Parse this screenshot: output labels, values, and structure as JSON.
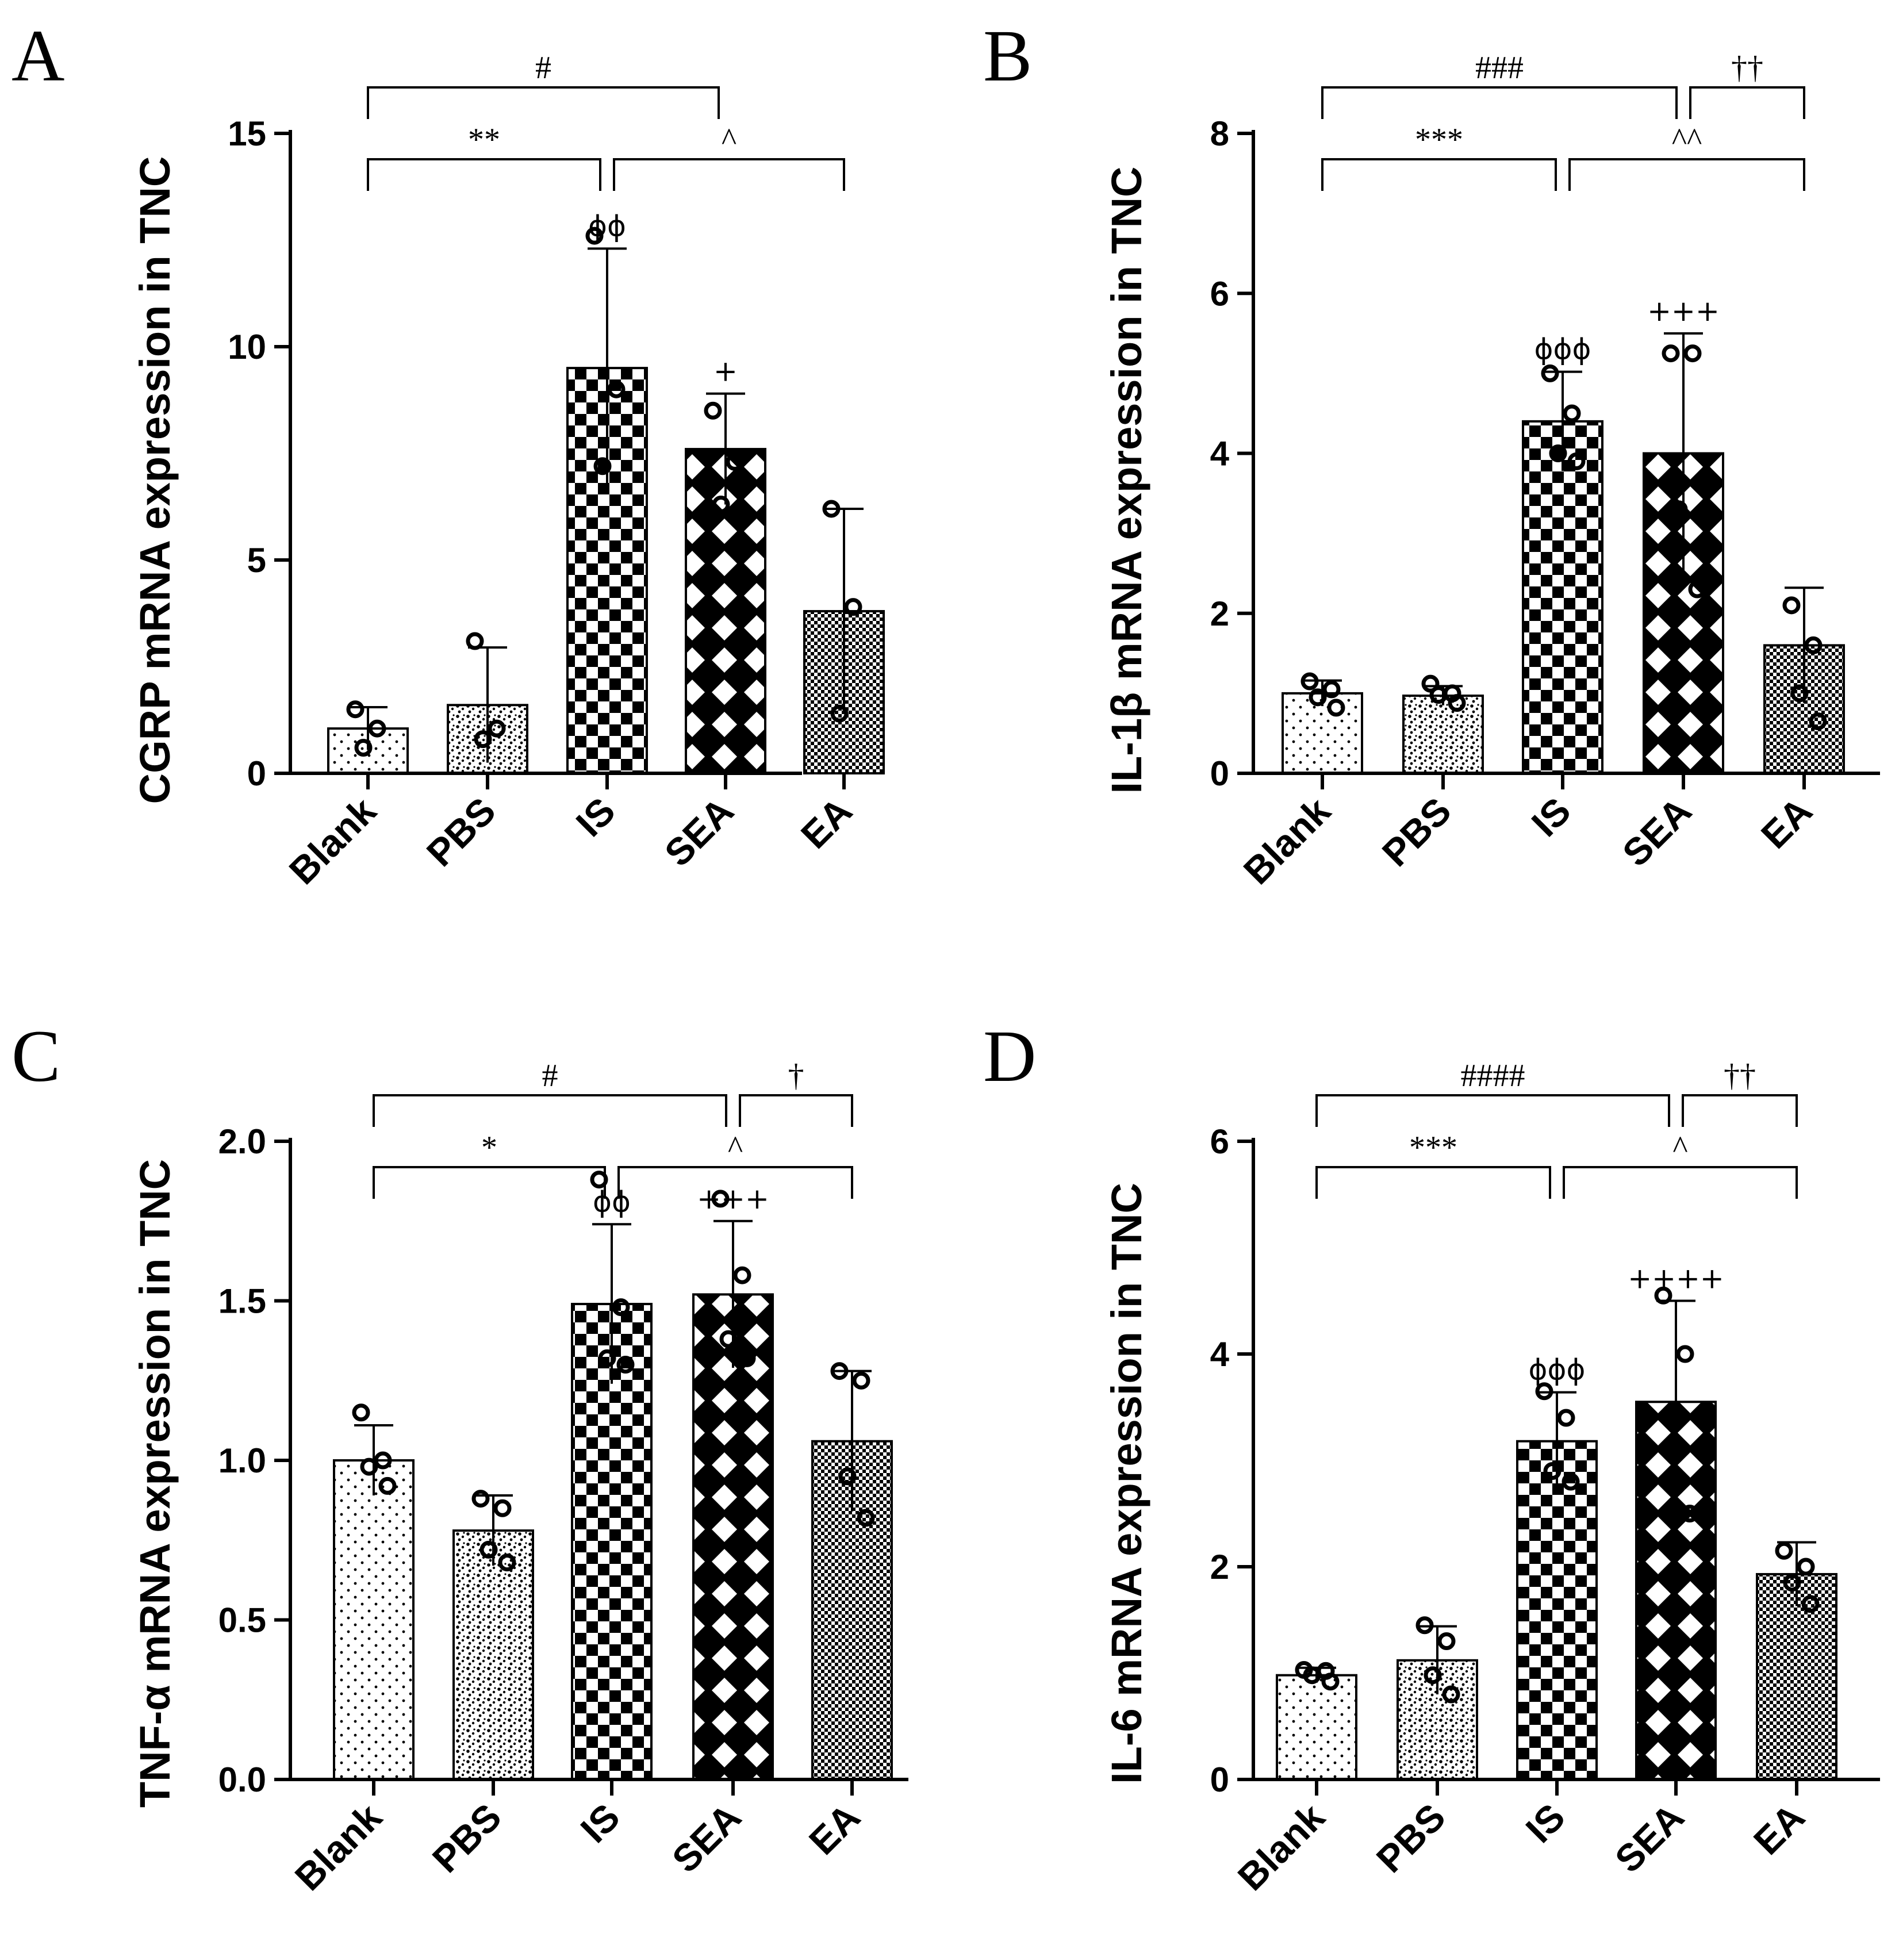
{
  "chart_data": [
    {
      "panel": "A",
      "type": "bar",
      "ylabel": "CGRP mRNA expression in TNC",
      "ylim": [
        0,
        15
      ],
      "yticks": [
        "0",
        "5",
        "10",
        "15"
      ],
      "ytick_values": [
        0,
        5,
        10,
        15
      ],
      "categories": [
        "Blank",
        "PBS",
        "IS",
        "SEA",
        "EA"
      ],
      "values": [
        1.05,
        1.6,
        9.5,
        7.6,
        3.8
      ],
      "errors": [
        0.5,
        1.35,
        2.8,
        1.3,
        2.4
      ],
      "points": [
        [
          1.5,
          1.05,
          0.6
        ],
        [
          3.1,
          1.05,
          0.8
        ],
        [
          12.6,
          9.0,
          7.2
        ],
        [
          8.5,
          7.3,
          6.3
        ],
        [
          6.2,
          3.9,
          1.4
        ]
      ],
      "patterns": [
        "dots",
        "speckle",
        "checker",
        "diamond",
        "fine"
      ],
      "group_symbols": [
        "",
        "",
        "ϕϕ",
        "+",
        ""
      ],
      "comparisons": [
        {
          "from": 0,
          "to": 2,
          "label": "**",
          "level": 0
        },
        {
          "from": 2,
          "to": 4,
          "label": "^",
          "level": 0
        },
        {
          "from": 0,
          "to": 3,
          "label": "#",
          "level": 1
        }
      ]
    },
    {
      "panel": "B",
      "type": "bar",
      "ylabel": "IL-1β mRNA expression in TNC",
      "ylim": [
        0,
        8
      ],
      "yticks": [
        "0",
        "2",
        "4",
        "6",
        "8"
      ],
      "ytick_values": [
        0,
        2,
        4,
        6,
        8
      ],
      "categories": [
        "Blank",
        "PBS",
        "IS",
        "SEA",
        "EA"
      ],
      "values": [
        1.0,
        0.97,
        4.4,
        4.0,
        1.6
      ],
      "errors": [
        0.16,
        0.12,
        0.62,
        1.5,
        0.72
      ],
      "points": [
        [
          1.15,
          1.05,
          0.95,
          0.82
        ],
        [
          1.12,
          1.0,
          0.98,
          0.88
        ],
        [
          5.0,
          4.5,
          4.0,
          3.9
        ],
        [
          5.25,
          5.25,
          3.3,
          2.3
        ],
        [
          2.1,
          1.6,
          1.0,
          0.65
        ]
      ],
      "patterns": [
        "dots",
        "speckle",
        "checker",
        "diamond",
        "fine"
      ],
      "group_symbols": [
        "",
        "",
        "ϕϕϕ",
        "+++",
        ""
      ],
      "comparisons": [
        {
          "from": 0,
          "to": 2,
          "label": "***",
          "level": 0
        },
        {
          "from": 2,
          "to": 4,
          "label": "^^",
          "level": 0
        },
        {
          "from": 0,
          "to": 3,
          "label": "###",
          "level": 1
        },
        {
          "from": 3,
          "to": 4,
          "label": "††",
          "level": 1
        }
      ]
    },
    {
      "panel": "C",
      "type": "bar",
      "ylabel": "TNF-α mRNA expression in TNC",
      "ylim": [
        0,
        2.0
      ],
      "yticks": [
        "0.0",
        "0.5",
        "1.0",
        "1.5",
        "2.0"
      ],
      "ytick_values": [
        0,
        0.5,
        1.0,
        1.5,
        2.0
      ],
      "categories": [
        "Blank",
        "PBS",
        "IS",
        "SEA",
        "EA"
      ],
      "values": [
        1.0,
        0.78,
        1.49,
        1.52,
        1.06
      ],
      "errors": [
        0.11,
        0.11,
        0.25,
        0.23,
        0.22
      ],
      "points": [
        [
          1.15,
          1.0,
          0.98,
          0.92
        ],
        [
          0.88,
          0.85,
          0.72,
          0.68
        ],
        [
          1.88,
          1.48,
          1.32,
          1.3
        ],
        [
          1.82,
          1.58,
          1.38,
          1.32
        ],
        [
          1.28,
          1.25,
          0.95,
          0.82
        ]
      ],
      "patterns": [
        "dots",
        "speckle",
        "checker",
        "diamond",
        "fine"
      ],
      "group_symbols": [
        "",
        "",
        "ϕϕ",
        "+++",
        ""
      ],
      "comparisons": [
        {
          "from": 0,
          "to": 2,
          "label": "*",
          "level": 0
        },
        {
          "from": 2,
          "to": 4,
          "label": "^",
          "level": 0
        },
        {
          "from": 0,
          "to": 3,
          "label": "#",
          "level": 1
        },
        {
          "from": 3,
          "to": 4,
          "label": "†",
          "level": 1
        }
      ]
    },
    {
      "panel": "D",
      "type": "bar",
      "ylabel": "IL-6 mRNA expression in TNC",
      "ylim": [
        0,
        6
      ],
      "yticks": [
        "0",
        "2",
        "4",
        "6"
      ],
      "ytick_values": [
        0,
        2,
        4,
        6
      ],
      "categories": [
        "Blank",
        "PBS",
        "IS",
        "SEA",
        "EA"
      ],
      "values": [
        0.98,
        1.12,
        3.18,
        3.55,
        1.93
      ],
      "errors": [
        0.07,
        0.32,
        0.46,
        0.95,
        0.3
      ],
      "points": [
        [
          1.03,
          1.02,
          0.98,
          0.92
        ],
        [
          1.45,
          1.3,
          0.98,
          0.8
        ],
        [
          3.65,
          3.4,
          2.9,
          2.8
        ],
        [
          4.55,
          4.0,
          3.1,
          2.5
        ],
        [
          2.15,
          2.0,
          1.85,
          1.65
        ]
      ],
      "patterns": [
        "dots",
        "speckle",
        "checker",
        "diamond",
        "fine"
      ],
      "group_symbols": [
        "",
        "",
        "ϕϕϕ",
        "++++",
        ""
      ],
      "comparisons": [
        {
          "from": 0,
          "to": 2,
          "label": "***",
          "level": 0
        },
        {
          "from": 2,
          "to": 4,
          "label": "^",
          "level": 0
        },
        {
          "from": 0,
          "to": 3,
          "label": "####",
          "level": 1
        },
        {
          "from": 3,
          "to": 4,
          "label": "††",
          "level": 1
        }
      ]
    }
  ]
}
